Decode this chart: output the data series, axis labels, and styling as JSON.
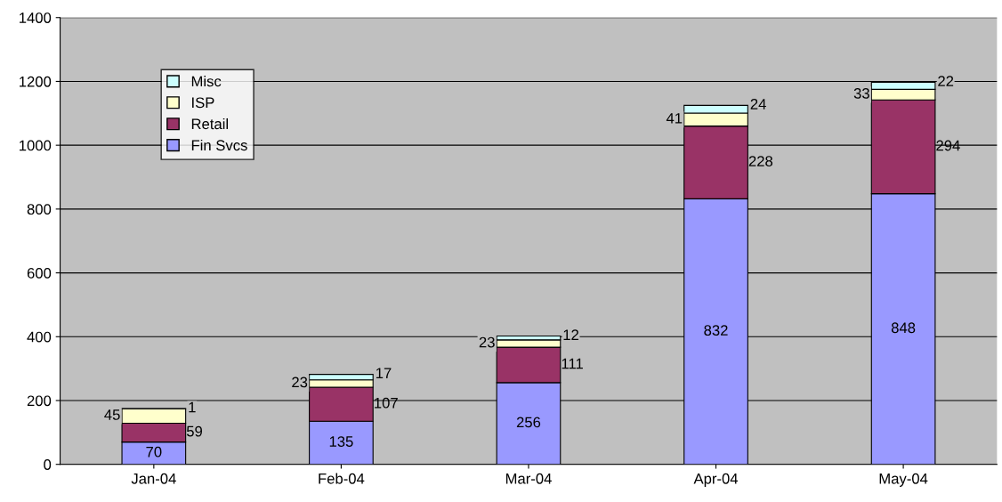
{
  "chart_data": {
    "type": "bar",
    "stacked": true,
    "categories": [
      "Jan-04",
      "Feb-04",
      "Mar-04",
      "Apr-04",
      "May-04"
    ],
    "series": [
      {
        "name": "Fin Svcs",
        "color": "#9999ff",
        "values": [
          70,
          135,
          256,
          832,
          848
        ]
      },
      {
        "name": "Retail",
        "color": "#993366",
        "values": [
          59,
          107,
          111,
          228,
          294
        ]
      },
      {
        "name": "ISP",
        "color": "#ffffcc",
        "values": [
          45,
          23,
          23,
          41,
          33
        ]
      },
      {
        "name": "Misc",
        "color": "#ccffff",
        "values": [
          1,
          17,
          12,
          24,
          22
        ]
      }
    ],
    "ylim": [
      0,
      1400
    ],
    "yticks": [
      0,
      200,
      400,
      600,
      800,
      1000,
      1200,
      1400
    ],
    "grid": "y",
    "legend": "top left",
    "data_labels": true
  }
}
